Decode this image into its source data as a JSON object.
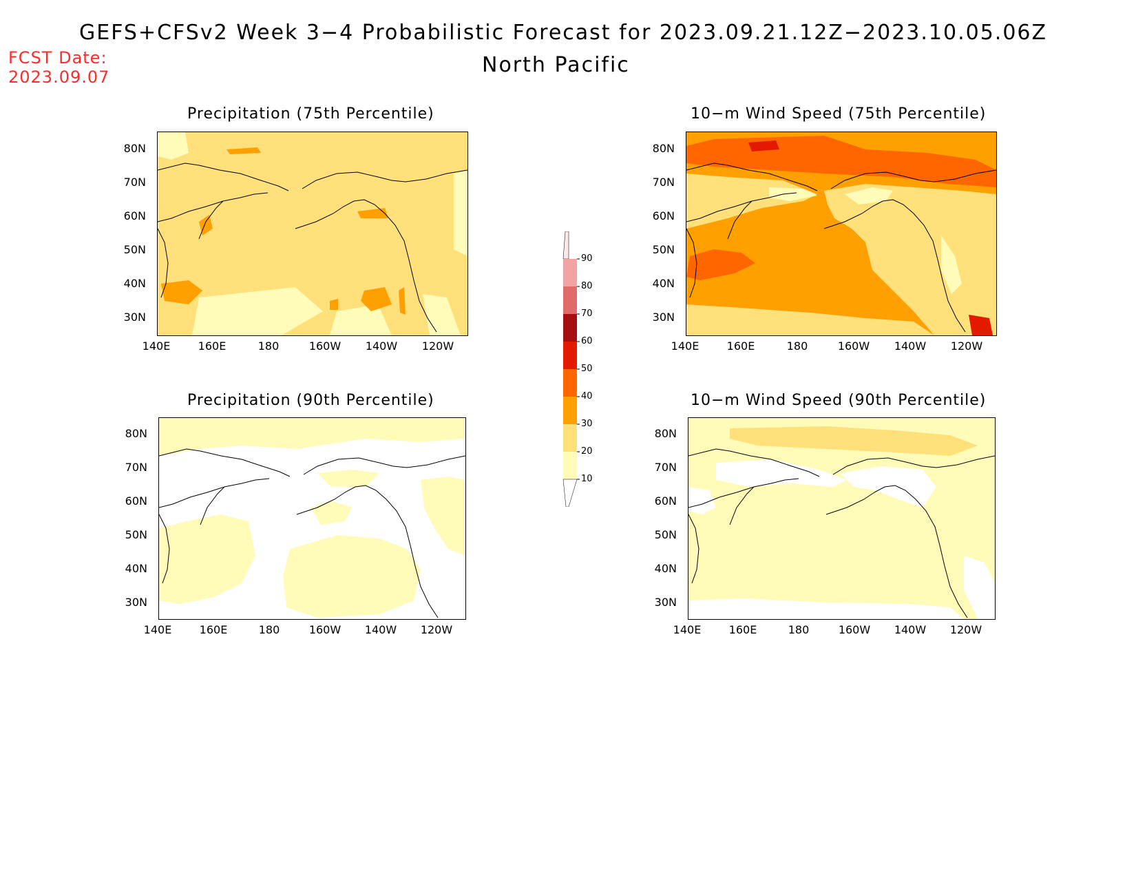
{
  "header": {
    "title": "GEFS+CFSv2 Week 3−4 Probabilistic Forecast for 2023.09.21.12Z−2023.10.05.06Z",
    "subtitle": "North Pacific",
    "fcst_label": "FCST Date:",
    "fcst_date": "2023.09.07"
  },
  "axes": {
    "lat_ticks": [
      "80N",
      "70N",
      "60N",
      "50N",
      "40N",
      "30N"
    ],
    "lon_ticks": [
      "140E",
      "160E",
      "180",
      "160W",
      "140W",
      "120W"
    ]
  },
  "panels": [
    {
      "title": "Precipitation (75th Percentile)",
      "dominant_level": "20-30"
    },
    {
      "title": "10−m Wind Speed (75th Percentile)",
      "dominant_level": "30-40"
    },
    {
      "title": "Precipitation (90th Percentile)",
      "dominant_level": "10-20"
    },
    {
      "title": "10−m Wind Speed (90th Percentile)",
      "dominant_level": "10-20"
    }
  ],
  "colorbar": {
    "labels": [
      "90",
      "80",
      "70",
      "60",
      "50",
      "40",
      "30",
      "20",
      "10"
    ],
    "colors": [
      "#fbd9d9",
      "#f2a3a3",
      "#e06b6b",
      "#a50f0f",
      "#e41a00",
      "#ff6600",
      "#ff9f00",
      "#ffe07a",
      "#fffbb8"
    ]
  },
  "colors": {
    "white": "#ffffff",
    "c10": "#fffbb8",
    "c20": "#ffe07a",
    "c30": "#ff9f00",
    "c40": "#ff6600",
    "c50": "#e41a00",
    "c60": "#a50f0f",
    "fcst_text": "#ff2a2a"
  }
}
